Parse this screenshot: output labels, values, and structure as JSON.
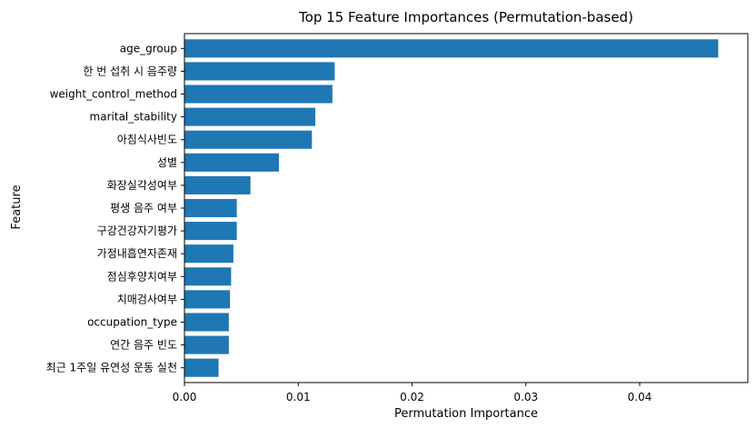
{
  "chart_data": {
    "type": "bar",
    "orientation": "horizontal",
    "title": "Top 15 Feature Importances (Permutation-based)",
    "xlabel": "Permutation Importance",
    "ylabel": "Feature",
    "xlim": [
      0,
      0.0495
    ],
    "xticks": [
      0.0,
      0.01,
      0.02,
      0.03,
      0.04
    ],
    "xtick_labels": [
      "0.00",
      "0.01",
      "0.02",
      "0.03",
      "0.04"
    ],
    "grid": false,
    "categories": [
      "age_group",
      "한 번 섭취 시 음주량",
      "weight_control_method",
      "marital_stability",
      "아침식사빈도",
      "성별",
      "화장실각성여부",
      "평생 음주 여부",
      "구강건강자기평가",
      "가정내흡연자존재",
      "점심후양치여부",
      "치매검사여부",
      "occupation_type",
      "연간 음주 빈도",
      "최근 1주일 유연성 운동 실천"
    ],
    "values": [
      0.0469,
      0.0132,
      0.013,
      0.0115,
      0.0112,
      0.0083,
      0.0058,
      0.0046,
      0.0046,
      0.0043,
      0.0041,
      0.004,
      0.0039,
      0.0039,
      0.003
    ],
    "bar_color": "#1f77b4"
  }
}
